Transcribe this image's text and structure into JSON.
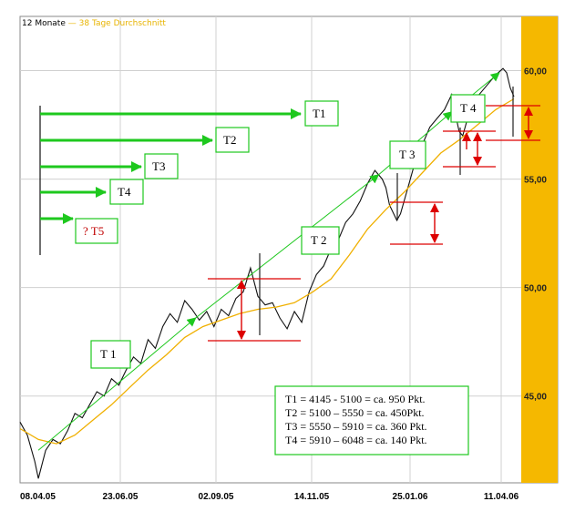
{
  "legend": {
    "series1": "12 Monate",
    "series2": "38 Tage Durchschnitt"
  },
  "colors": {
    "price": "#111111",
    "average": "#f0b000",
    "trend": "#1ec81e",
    "arrow": "#dd0000",
    "box_border": "#1ec81e",
    "axis_panel": "#f5b800"
  },
  "chart_data": {
    "type": "line",
    "title": "",
    "xlabel": "",
    "ylabel": "",
    "x_ticks": [
      "08.04.05",
      "23.06.05",
      "02.09.05",
      "14.11.05",
      "25.01.06",
      "11.04.06"
    ],
    "y_ticks": [
      "45,00",
      "50,00",
      "55,00",
      "60,00"
    ],
    "ylim": [
      41.0,
      62.5
    ],
    "grid": true,
    "series": [
      {
        "name": "12 Monate",
        "points": [
          [
            0,
            43.8
          ],
          [
            4,
            43.2
          ],
          [
            8,
            42.0
          ],
          [
            10,
            41.2
          ],
          [
            14,
            42.5
          ],
          [
            18,
            43.0
          ],
          [
            22,
            42.8
          ],
          [
            26,
            43.4
          ],
          [
            30,
            44.2
          ],
          [
            34,
            44.0
          ],
          [
            38,
            44.6
          ],
          [
            42,
            45.2
          ],
          [
            46,
            45.0
          ],
          [
            50,
            45.8
          ],
          [
            54,
            45.5
          ],
          [
            58,
            46.2
          ],
          [
            62,
            46.8
          ],
          [
            66,
            46.5
          ],
          [
            70,
            47.6
          ],
          [
            74,
            47.2
          ],
          [
            78,
            48.2
          ],
          [
            82,
            48.8
          ],
          [
            86,
            48.4
          ],
          [
            90,
            49.4
          ],
          [
            94,
            49.0
          ],
          [
            98,
            48.5
          ],
          [
            102,
            48.9
          ],
          [
            106,
            48.2
          ],
          [
            110,
            49.0
          ],
          [
            114,
            48.7
          ],
          [
            118,
            49.5
          ],
          [
            122,
            49.8
          ],
          [
            126,
            50.9
          ],
          [
            130,
            49.6
          ],
          [
            134,
            49.2
          ],
          [
            138,
            49.3
          ],
          [
            142,
            48.6
          ],
          [
            146,
            48.1
          ],
          [
            150,
            48.9
          ],
          [
            154,
            48.4
          ],
          [
            158,
            49.8
          ],
          [
            162,
            50.6
          ],
          [
            166,
            51.0
          ],
          [
            170,
            51.8
          ],
          [
            174,
            52.2
          ],
          [
            178,
            53.0
          ],
          [
            182,
            53.4
          ],
          [
            186,
            54.0
          ],
          [
            190,
            54.8
          ],
          [
            194,
            55.4
          ],
          [
            198,
            55.0
          ],
          [
            200,
            54.6
          ],
          [
            202,
            53.8
          ],
          [
            206,
            53.1
          ],
          [
            208,
            53.4
          ],
          [
            212,
            54.6
          ],
          [
            216,
            55.8
          ],
          [
            220,
            56.6
          ],
          [
            224,
            57.4
          ],
          [
            228,
            57.8
          ],
          [
            232,
            58.2
          ],
          [
            236,
            58.9
          ],
          [
            238,
            58.0
          ],
          [
            240,
            57.2
          ],
          [
            242,
            57.0
          ],
          [
            244,
            57.6
          ],
          [
            248,
            58.6
          ],
          [
            252,
            59.0
          ],
          [
            256,
            59.4
          ],
          [
            260,
            59.8
          ],
          [
            264,
            60.1
          ],
          [
            266,
            59.9
          ],
          [
            268,
            59.2
          ],
          [
            270,
            58.8
          ]
        ]
      },
      {
        "name": "38 Tage Durchschnitt",
        "points": [
          [
            0,
            43.5
          ],
          [
            10,
            43.0
          ],
          [
            20,
            42.8
          ],
          [
            30,
            43.2
          ],
          [
            40,
            43.9
          ],
          [
            50,
            44.6
          ],
          [
            60,
            45.4
          ],
          [
            70,
            46.2
          ],
          [
            80,
            46.9
          ],
          [
            90,
            47.7
          ],
          [
            100,
            48.2
          ],
          [
            110,
            48.5
          ],
          [
            120,
            48.8
          ],
          [
            130,
            49.0
          ],
          [
            140,
            49.1
          ],
          [
            150,
            49.3
          ],
          [
            160,
            49.8
          ],
          [
            170,
            50.4
          ],
          [
            180,
            51.5
          ],
          [
            190,
            52.7
          ],
          [
            200,
            53.6
          ],
          [
            210,
            54.4
          ],
          [
            220,
            55.3
          ],
          [
            230,
            56.2
          ],
          [
            240,
            56.8
          ],
          [
            250,
            57.5
          ],
          [
            260,
            58.2
          ],
          [
            270,
            58.7
          ]
        ]
      }
    ],
    "x_range": [
      0,
      270
    ],
    "trend_lines": [
      {
        "from": [
          10,
          42.5
        ],
        "to": [
          96,
          48.6
        ]
      },
      {
        "from": [
          96,
          48.6
        ],
        "to": [
          196,
          55.2
        ]
      },
      {
        "from": [
          196,
          55.2
        ],
        "to": [
          236,
          58.1
        ]
      },
      {
        "from": [
          236,
          58.1
        ],
        "to": [
          262,
          59.9
        ]
      }
    ]
  },
  "annotations": {
    "horizontal_arrows": [
      {
        "label": "T1"
      },
      {
        "label": "T2"
      },
      {
        "label": "T3"
      },
      {
        "label": "T4"
      },
      {
        "label": "? T5"
      }
    ],
    "on_chart_labels": [
      "T 1",
      "T 2",
      "T 3",
      "T 4"
    ],
    "formula_lines": [
      "T1 = 4145 - 5100  = ca. 950 Pkt.",
      "T2 = 5100 – 5550 = ca. 450Pkt.",
      "T3 = 5550 – 5910 = ca. 360 Pkt.",
      "T4 = 5910 – 6048 = ca. 140 Pkt."
    ]
  }
}
